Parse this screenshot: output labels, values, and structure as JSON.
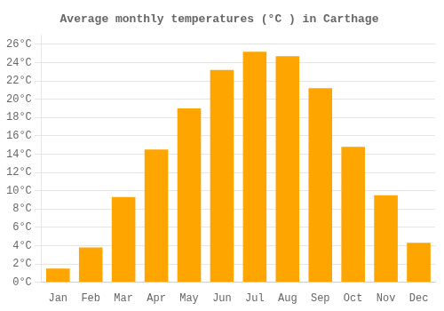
{
  "chart_data": {
    "type": "bar",
    "title": "Average monthly temperatures (°C ) in Carthage",
    "categories": [
      "Jan",
      "Feb",
      "Mar",
      "Apr",
      "May",
      "Jun",
      "Jul",
      "Aug",
      "Sep",
      "Oct",
      "Nov",
      "Dec"
    ],
    "values": [
      1.5,
      3.8,
      9.3,
      14.5,
      19.0,
      23.2,
      25.2,
      24.7,
      21.2,
      14.8,
      9.5,
      4.3
    ],
    "color": "#FFA500",
    "ylim": [
      0,
      27
    ],
    "yticks": [
      {
        "value": 0,
        "label": "0°C"
      },
      {
        "value": 2,
        "label": "2°C"
      },
      {
        "value": 4,
        "label": "4°C"
      },
      {
        "value": 6,
        "label": "6°C"
      },
      {
        "value": 8,
        "label": "8°C"
      },
      {
        "value": 10,
        "label": "10°C"
      },
      {
        "value": 12,
        "label": "12°C"
      },
      {
        "value": 14,
        "label": "14°C"
      },
      {
        "value": 16,
        "label": "16°C"
      },
      {
        "value": 18,
        "label": "18°C"
      },
      {
        "value": 20,
        "label": "20°C"
      },
      {
        "value": 22,
        "label": "22°C"
      },
      {
        "value": 24,
        "label": "24°C"
      },
      {
        "value": 26,
        "label": "26°C"
      }
    ],
    "grid": true
  }
}
